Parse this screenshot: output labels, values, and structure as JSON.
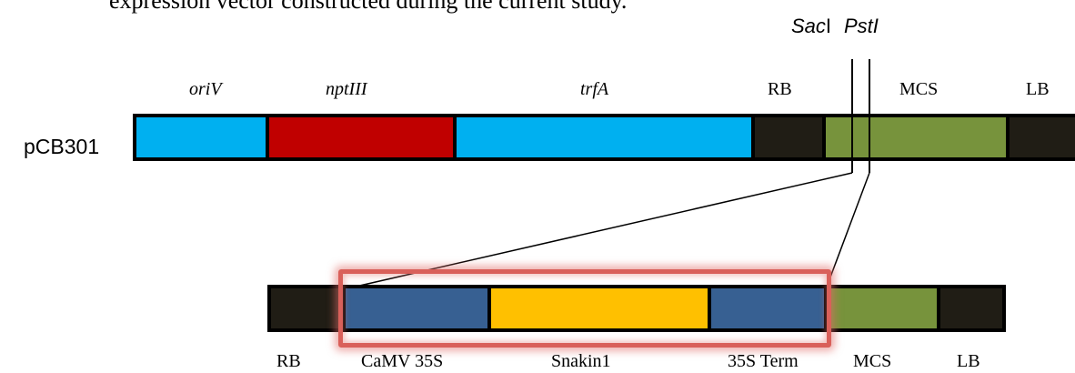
{
  "caption_fragment": "expression vector constructed during the current study.",
  "restriction_sites": {
    "sac_prefix": "Sac",
    "sac_suffix": "I",
    "pst": "PstI"
  },
  "plasmid": {
    "name": "pCB301",
    "segments": [
      {
        "label": "oriV",
        "color": "#00b0f0"
      },
      {
        "label": "nptIII",
        "color": "#c00000"
      },
      {
        "label": "trfA",
        "color": "#00b0f0"
      },
      {
        "label": "RB",
        "color": "#201d15"
      },
      {
        "label": "MCS",
        "color": "#77933c"
      },
      {
        "label": "LB",
        "color": "#201d15"
      }
    ]
  },
  "insert": {
    "segments": [
      {
        "label": "RB",
        "color": "#201d15"
      },
      {
        "label": "CaMV 35S",
        "color": "#376092"
      },
      {
        "label": "Snakin1",
        "color": "#ffc000"
      },
      {
        "label": "35S Term",
        "color": "#376092"
      },
      {
        "label": "MCS",
        "color": "#77933c"
      },
      {
        "label": "LB",
        "color": "#201d15"
      }
    ],
    "highlight_color": "#d9605a"
  }
}
